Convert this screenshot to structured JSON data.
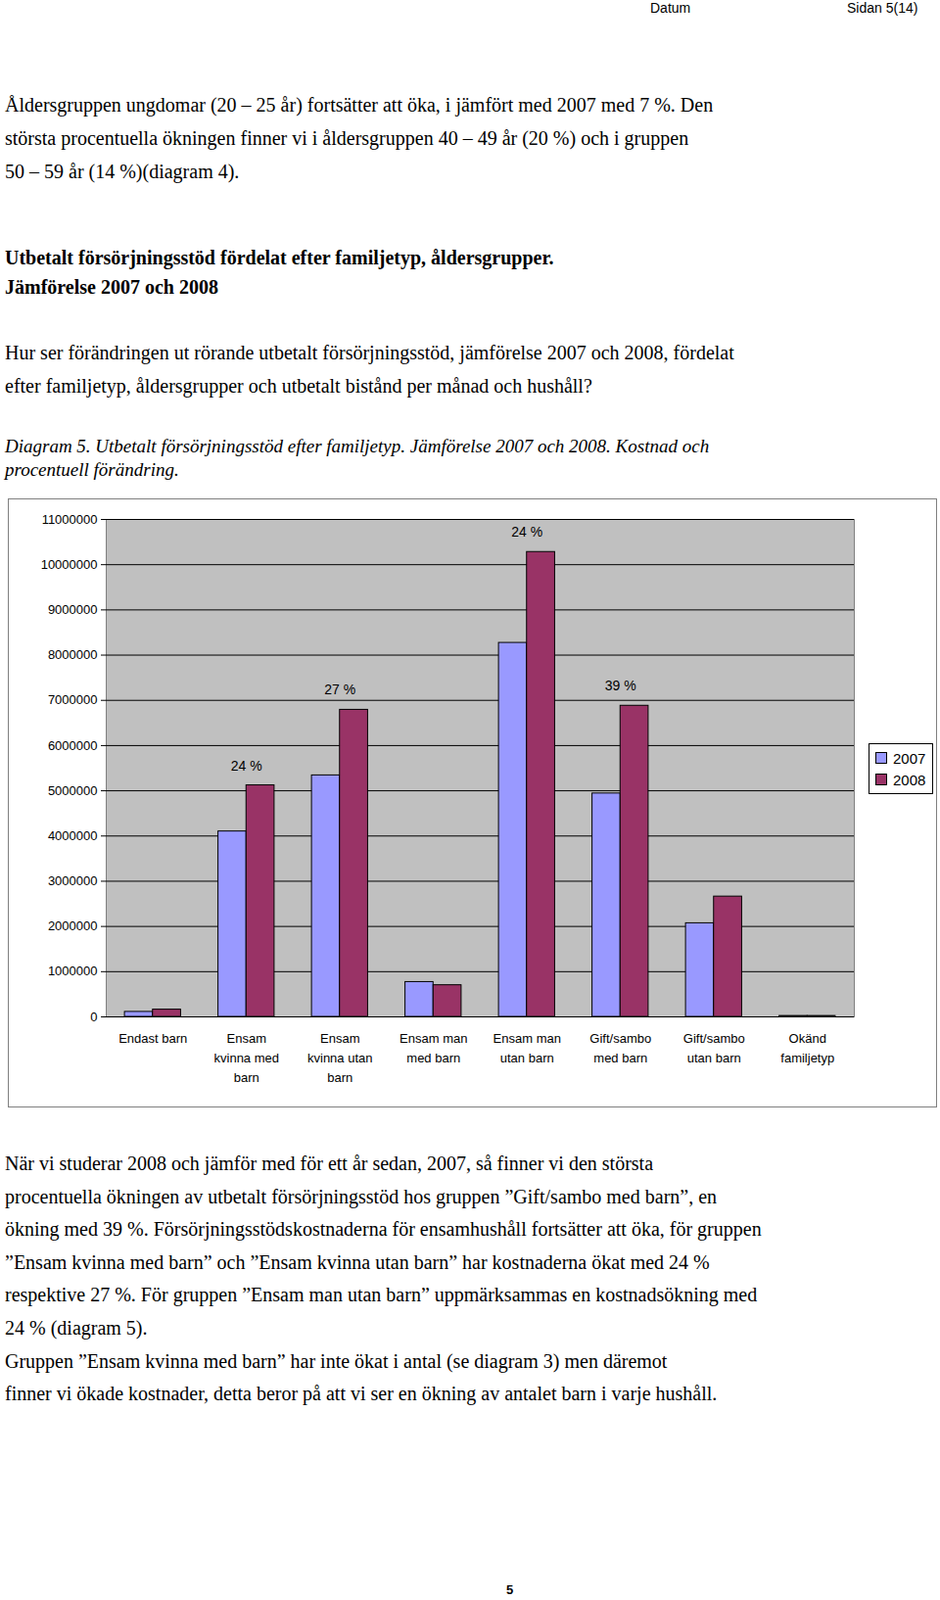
{
  "header": {
    "left": "Datum",
    "right": "Sidan 5(14)"
  },
  "intro_lines": [
    "Åldersgruppen ungdomar (20 – 25 år) fortsätter att öka, i jämfört med 2007 med 7 %. Den",
    "största procentuella ökningen finner vi i åldersgruppen 40 – 49 år (20 %) och i gruppen",
    "50 – 59 år (14 %)(diagram 4)."
  ],
  "heading_lines": [
    "Utbetalt försörjningsstöd fördelat efter familjetyp, åldersgrupper.",
    "Jämförelse 2007 och 2008"
  ],
  "question_lines": [
    "Hur ser förändringen ut rörande utbetalt försörjningsstöd, jämförelse 2007 och 2008, fördelat",
    "efter familjetyp, åldersgrupper och utbetalt bistånd per månad och hushåll?"
  ],
  "caption_lines": [
    "Diagram 5. Utbetalt försörjningsstöd efter familjetyp. Jämförelse 2007 och 2008. Kostnad och",
    "procentuell förändring."
  ],
  "chart_data": {
    "type": "bar",
    "categories": [
      "Endast barn",
      "Ensam kvinna med barn",
      "Ensam kvinna utan barn",
      "Ensam man med barn",
      "Ensam man utan barn",
      "Gift/sambo med barn",
      "Gift/sambo utan barn",
      "Okänd familjetyp"
    ],
    "series": [
      {
        "name": "2007",
        "color": "#9999ff",
        "values": [
          110000,
          4100000,
          5340000,
          770000,
          8270000,
          4940000,
          2070000,
          20000
        ]
      },
      {
        "name": "2008",
        "color": "#993366",
        "values": [
          160000,
          5120000,
          6790000,
          700000,
          10280000,
          6880000,
          2660000,
          20000
        ]
      }
    ],
    "ylim": [
      0,
      11000000
    ],
    "yticks": [
      0,
      1000000,
      2000000,
      3000000,
      4000000,
      5000000,
      6000000,
      7000000,
      8000000,
      9000000,
      10000000,
      11000000
    ],
    "grid": true,
    "legend": "right",
    "annotations": [
      {
        "category": "Ensam kvinna med barn",
        "label": "24 %"
      },
      {
        "category": "Ensam kvinna utan barn",
        "label": "27 %"
      },
      {
        "category": "Ensam man utan barn",
        "label": "24 %"
      },
      {
        "category": "Gift/sambo med barn",
        "label": "39 %"
      }
    ]
  },
  "conclusion_lines": [
    "När vi studerar 2008 och jämför med för ett år sedan, 2007, så finner vi den största",
    "procentuella ökningen av utbetalt försörjningsstöd hos gruppen ”Gift/sambo med barn”, en",
    "ökning med 39 %. Försörjningsstödskostnaderna för ensamhushåll fortsätter att öka, för gruppen",
    "”Ensam kvinna med barn” och ”Ensam kvinna utan barn” har kostnaderna ökat med 24 %",
    "respektive 27 %. För gruppen ”Ensam man utan barn” uppmärksammas en kostnadsökning med",
    "24 % (diagram 5).",
    "Gruppen ”Ensam kvinna med barn” har inte ökat i antal (se diagram 3) men däremot",
    "finner vi ökade kostnader, detta beror på att vi ser en ökning av antalet barn i varje hushåll."
  ],
  "page_number": "5"
}
